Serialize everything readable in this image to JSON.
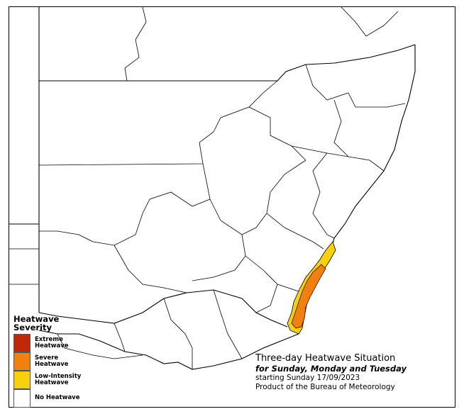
{
  "legend": {
    "title": "Heatwave\nSeverity",
    "items": [
      {
        "label": "Extreme\nHeatwave",
        "color": "#c0280a"
      },
      {
        "label": "Severe\nHeatwave",
        "color": "#f08010"
      },
      {
        "label": "Low-Intensity\nHeatwave",
        "color": "#f8d010"
      },
      {
        "label": "No Heatwave",
        "color": "#ffffff"
      }
    ]
  },
  "caption": {
    "title": "Three-day Heatwave Situation",
    "subtitle": "for Sunday, Monday and Tuesday",
    "start": "starting Sunday 17/09/2023",
    "credit": "Product of the Bureau of Meteorology"
  },
  "colors": {
    "boundary": "#000000",
    "low_intensity": "#f8d010",
    "severe": "#f08010",
    "extreme": "#c0280a"
  }
}
